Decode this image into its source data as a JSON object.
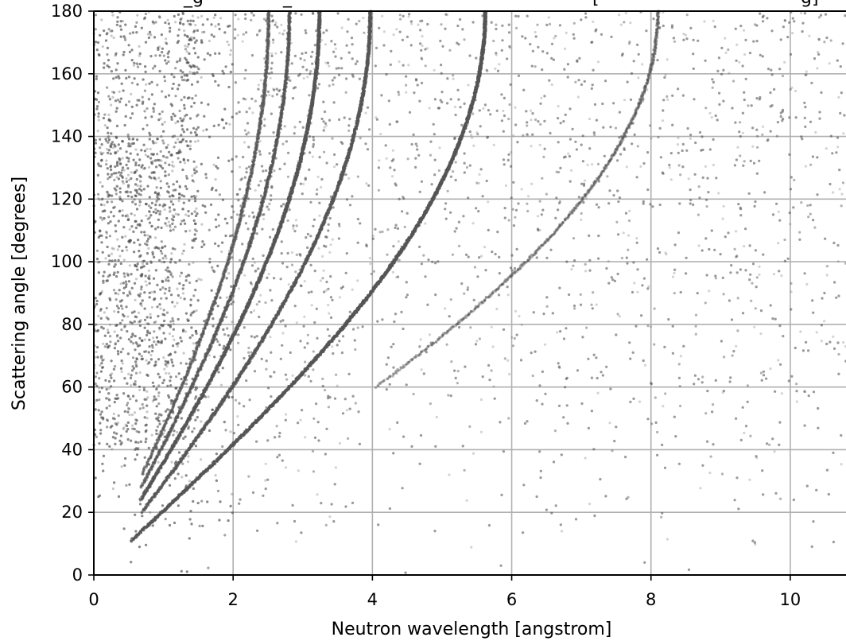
{
  "chart_data": {
    "type": "scatter",
    "title_fragments": [
      "_g",
      "_",
      "[",
      "g]"
    ],
    "xlabel": "Neutron wavelength [angstrom]",
    "ylabel": "Scattering angle [degrees]",
    "xlim": [
      0,
      10.8
    ],
    "ylim": [
      0,
      180
    ],
    "xticks": [
      0,
      2,
      4,
      6,
      8,
      10
    ],
    "xtick_labels": [
      "0",
      "2",
      "4",
      "6",
      "8",
      "10"
    ],
    "yticks": [
      0,
      20,
      40,
      60,
      80,
      100,
      120,
      140,
      160,
      180
    ],
    "ytick_labels": [
      "0",
      "20",
      "40",
      "60",
      "80",
      "100",
      "120",
      "140",
      "160",
      "180"
    ],
    "grid": true,
    "point_color": "#555555",
    "curve_color": "#000000",
    "bragg_curves": [
      {
        "lambda_max": 5.62,
        "angle_start": 11,
        "strength": 1.0
      },
      {
        "lambda_max": 3.97,
        "angle_start": 20,
        "strength": 0.75
      },
      {
        "lambda_max": 3.24,
        "angle_start": 24,
        "strength": 0.85
      },
      {
        "lambda_max": 2.81,
        "angle_start": 28,
        "strength": 0.55
      },
      {
        "lambda_max": 2.51,
        "angle_start": 32,
        "strength": 0.45
      },
      {
        "lambda_max": 8.1,
        "angle_start": 60,
        "strength": 0.3
      }
    ],
    "background_points_estimate": 9000
  }
}
